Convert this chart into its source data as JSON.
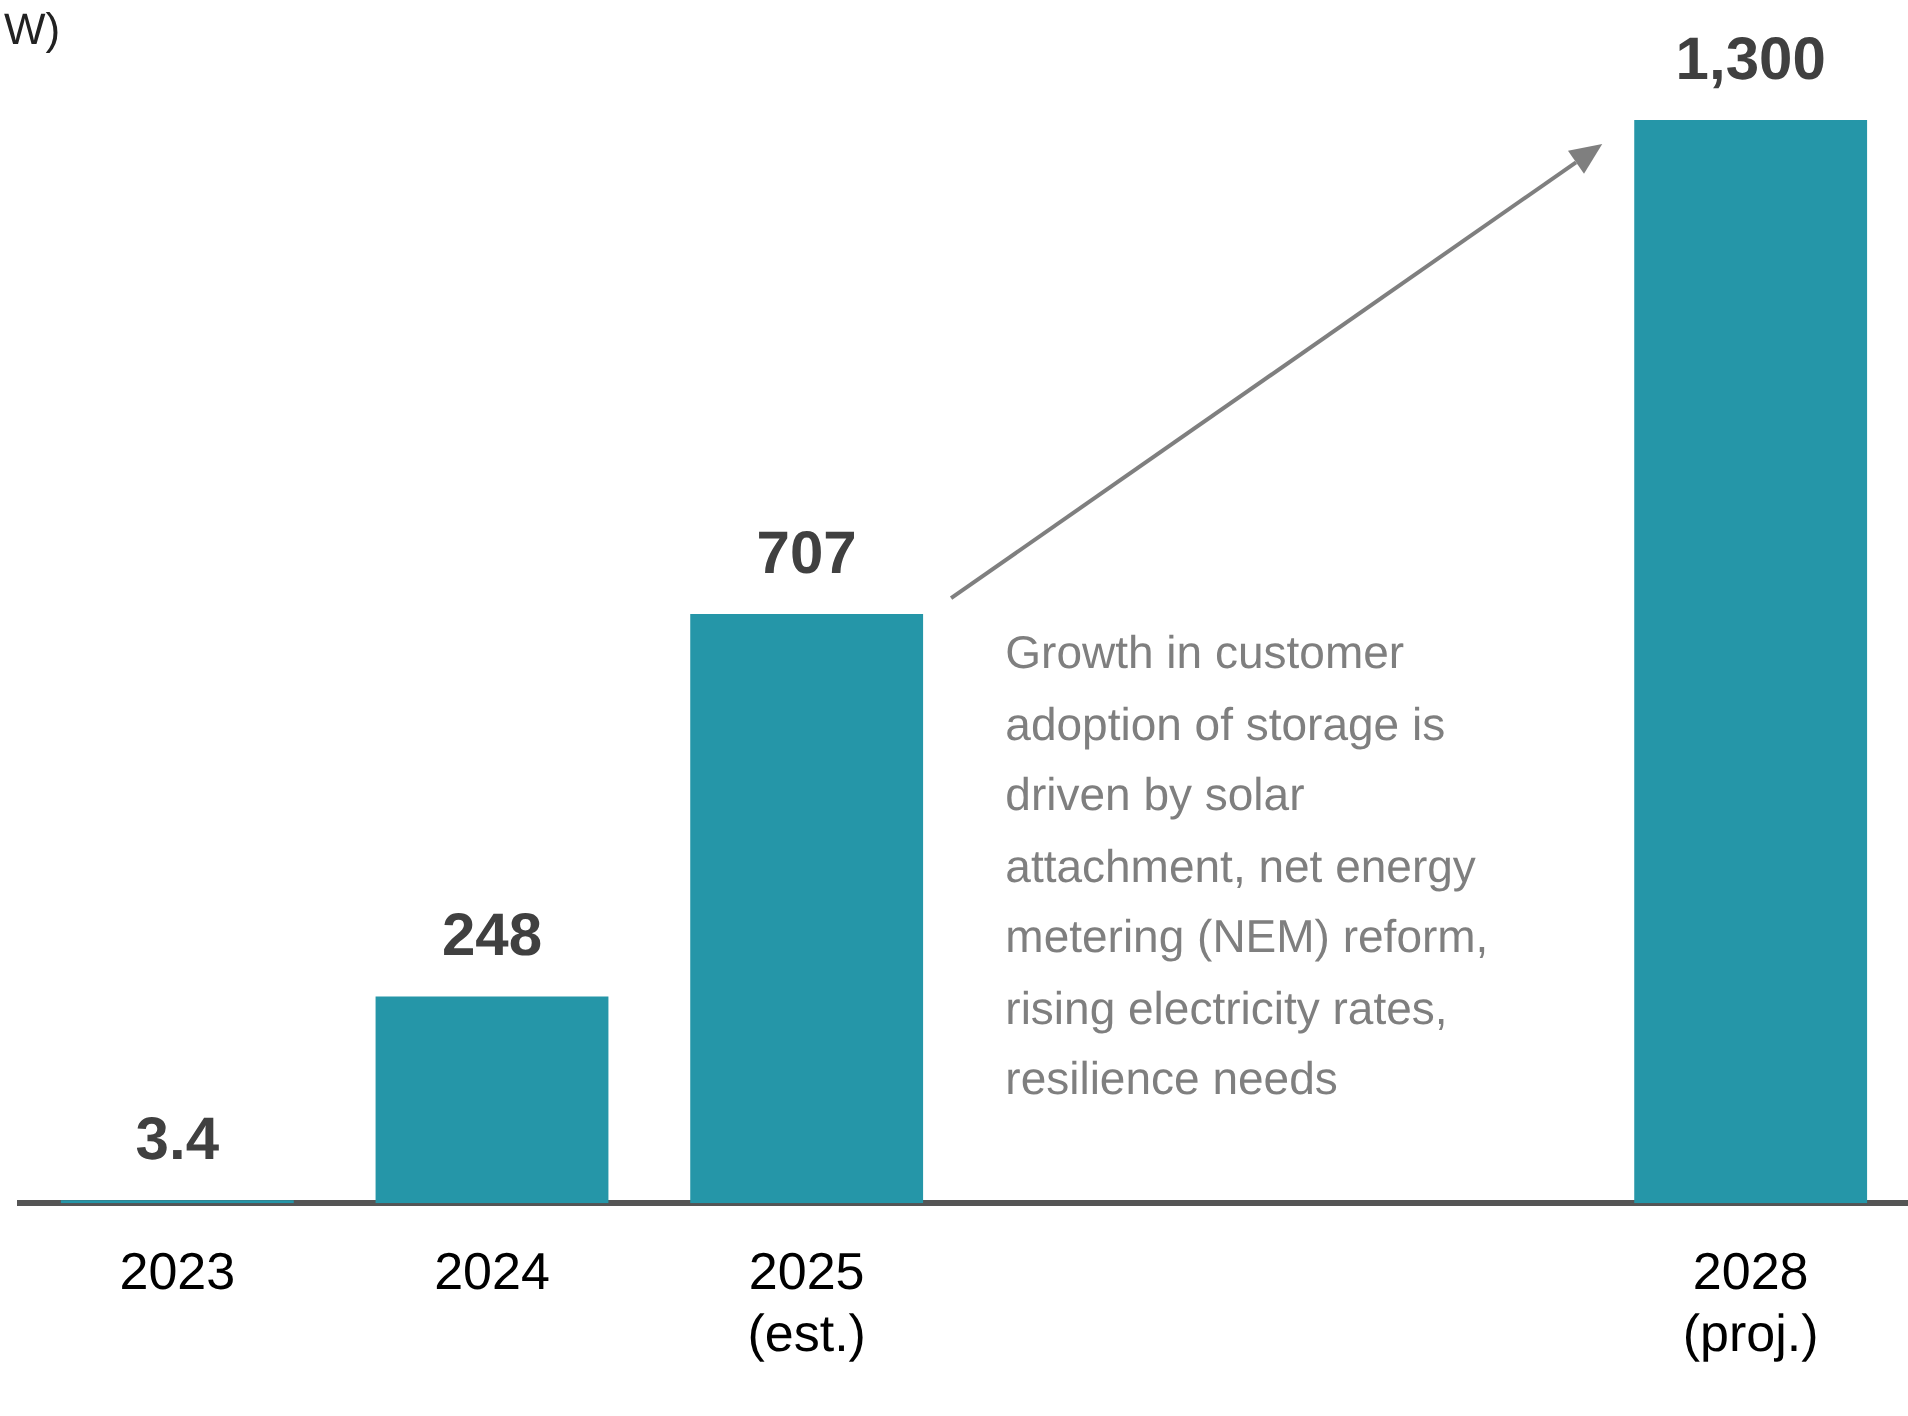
{
  "chart_data": {
    "type": "bar",
    "title": "W)",
    "categories": [
      "2023",
      "2024",
      "2025 (est.)",
      null,
      null,
      "2028 (proj.)"
    ],
    "values": [
      3.4,
      248,
      707,
      null,
      null,
      1300
    ],
    "colors": [
      "#2596a8",
      "#2596a8",
      "#2596a8",
      null,
      null,
      "#2596a8"
    ],
    "value_labels": [
      "3.4",
      "248",
      "707",
      null,
      null,
      "1,300"
    ],
    "legend": false,
    "annotations": [
      "Growth in customer adoption of storage is driven by solar attachment, net energy metering (NEM) reform, rising electricity rates, resilience needs"
    ]
  }
}
